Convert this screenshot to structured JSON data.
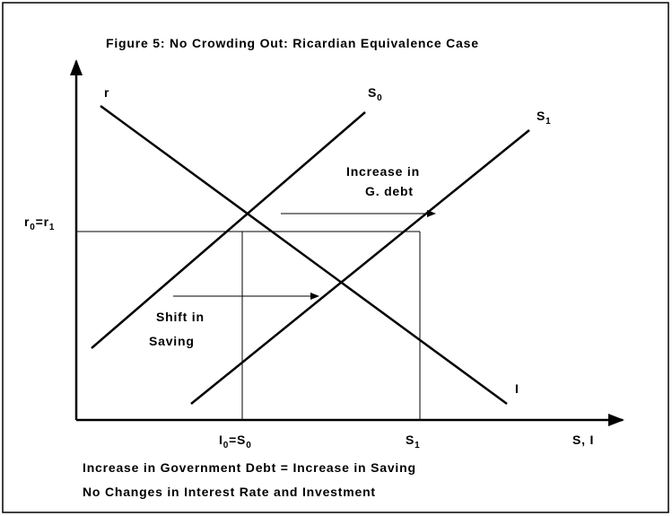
{
  "title": "Figure 5: No Crowding Out: Ricardian Equivalence Case",
  "axes": {
    "y_label": [
      "r"
    ],
    "x_label": [
      "S, I"
    ]
  },
  "curves": {
    "s0": [
      "S",
      "0"
    ],
    "s1": [
      "S",
      "1"
    ],
    "i": [
      "I"
    ]
  },
  "equilibrium": {
    "r_label": [
      "r",
      "0",
      "=r",
      "1"
    ],
    "x0_label": [
      "I",
      "0",
      "=S",
      "0"
    ],
    "x1_label": [
      "S",
      "1"
    ]
  },
  "annotations": {
    "debt": [
      "Increase in",
      "G. debt"
    ],
    "shift": [
      "Shift in",
      "Saving"
    ]
  },
  "caption": [
    "Increase in Government Debt = Increase in Saving",
    "No Changes in Interest Rate and Investment"
  ]
}
